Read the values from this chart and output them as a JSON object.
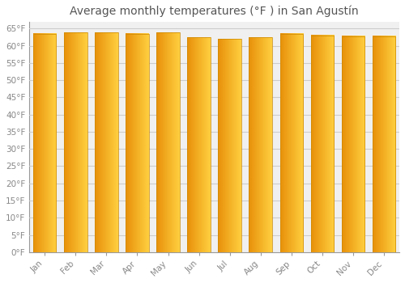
{
  "title": "Average monthly temperatures (°F ) in San Agustín",
  "months": [
    "Jan",
    "Feb",
    "Mar",
    "Apr",
    "May",
    "Jun",
    "Jul",
    "Aug",
    "Sep",
    "Oct",
    "Nov",
    "Dec"
  ],
  "values": [
    63.5,
    63.8,
    63.8,
    63.5,
    63.9,
    62.5,
    62.0,
    62.5,
    63.5,
    63.0,
    62.8,
    62.8
  ],
  "bar_color_left": "#E8900A",
  "bar_color_right": "#FFD040",
  "bar_edge_color": "#CC8800",
  "ylim": [
    0,
    67
  ],
  "yticks": [
    0,
    5,
    10,
    15,
    20,
    25,
    30,
    35,
    40,
    45,
    50,
    55,
    60,
    65
  ],
  "ytick_labels": [
    "0°F",
    "5°F",
    "10°F",
    "15°F",
    "20°F",
    "25°F",
    "30°F",
    "35°F",
    "40°F",
    "45°F",
    "50°F",
    "55°F",
    "60°F",
    "65°F"
  ],
  "background_color": "#ffffff",
  "plot_bg_color": "#f0f0f0",
  "grid_color": "#cccccc",
  "title_fontsize": 10,
  "tick_fontsize": 7.5,
  "title_color": "#555555",
  "tick_color": "#888888",
  "figsize": [
    5.0,
    3.5
  ],
  "dpi": 100
}
